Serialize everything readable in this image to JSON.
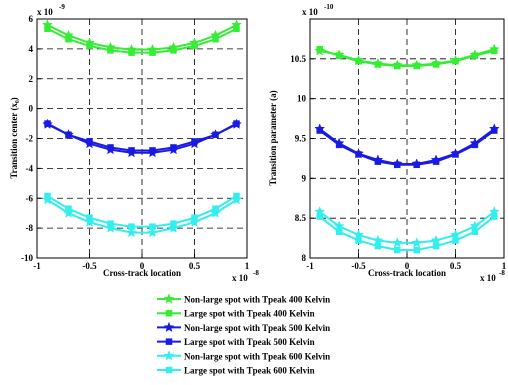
{
  "chart_data": [
    {
      "type": "line",
      "xlabel": "Cross-track location",
      "ylabel": "Transition center (x₀)",
      "x_exponent": "x 10",
      "x_exponent_power": "-8",
      "y_exponent": "x 10",
      "y_exponent_power": "-9",
      "xlim": [
        -1,
        1
      ],
      "ylim": [
        -10,
        6
      ],
      "xticks": [
        "-1",
        "-0.5",
        "0",
        "0.5",
        "1"
      ],
      "yticks": [
        "6",
        "4",
        "2",
        "0",
        "-2",
        "-4",
        "-6",
        "-8",
        "-10"
      ],
      "grid": true,
      "x": [
        -0.9,
        -0.7,
        -0.5,
        -0.3,
        -0.1,
        0.1,
        0.3,
        0.5,
        0.7,
        0.9
      ],
      "series": [
        {
          "name": "Non-large spot with Tpeak 400 Kelvin",
          "values": [
            5.6,
            4.9,
            4.4,
            4.1,
            3.95,
            3.95,
            4.1,
            4.4,
            4.9,
            5.6
          ]
        },
        {
          "name": "Large spot with Tpeak 400 Kelvin",
          "values": [
            5.35,
            4.65,
            4.2,
            3.9,
            3.75,
            3.75,
            3.9,
            4.2,
            4.65,
            5.35
          ]
        },
        {
          "name": "Non-large spot with Tpeak 500 Kelvin",
          "values": [
            -1.05,
            -1.75,
            -2.35,
            -2.75,
            -2.95,
            -2.95,
            -2.75,
            -2.35,
            -1.75,
            -1.05
          ]
        },
        {
          "name": "Large spot with Tpeak 500 Kelvin",
          "values": [
            -1.0,
            -1.75,
            -2.2,
            -2.6,
            -2.8,
            -2.8,
            -2.6,
            -2.2,
            -1.75,
            -1.0
          ]
        },
        {
          "name": "Non-large spot with Tpeak 600 Kelvin",
          "values": [
            -6.1,
            -7.0,
            -7.6,
            -8.0,
            -8.3,
            -8.3,
            -8.0,
            -7.6,
            -7.0,
            -6.1
          ]
        },
        {
          "name": "Large spot with Tpeak 600 Kelvin",
          "values": [
            -5.85,
            -6.7,
            -7.3,
            -7.7,
            -7.9,
            -7.9,
            -7.7,
            -7.3,
            -6.7,
            -5.85
          ]
        }
      ]
    },
    {
      "type": "line",
      "xlabel": "Cross-track location",
      "ylabel": "Transition parameter (a)",
      "x_exponent": "x 10",
      "x_exponent_power": "-8",
      "y_exponent": "x 10",
      "y_exponent_power": "-10",
      "xlim": [
        -1,
        1
      ],
      "ylim": [
        8,
        11
      ],
      "xticks": [
        "-1",
        "-0.5",
        "0",
        "0.5",
        "1"
      ],
      "yticks": [
        "10.5",
        "10",
        "9.5",
        "9",
        "8.5",
        "8"
      ],
      "grid": true,
      "x": [
        -0.9,
        -0.7,
        -0.5,
        -0.3,
        -0.1,
        0.1,
        0.3,
        0.5,
        0.7,
        0.9
      ],
      "series": [
        {
          "name": "Non-large spot with Tpeak 400 Kelvin",
          "values": [
            10.6,
            10.55,
            10.48,
            10.44,
            10.42,
            10.42,
            10.44,
            10.48,
            10.55,
            10.62
          ]
        },
        {
          "name": "Large spot with Tpeak 400 Kelvin",
          "values": [
            10.62,
            10.54,
            10.47,
            10.43,
            10.41,
            10.41,
            10.43,
            10.47,
            10.54,
            10.6
          ]
        },
        {
          "name": "Non-large spot with Tpeak 500 Kelvin",
          "values": [
            9.62,
            9.44,
            9.31,
            9.23,
            9.18,
            9.18,
            9.23,
            9.31,
            9.44,
            9.62
          ]
        },
        {
          "name": "Large spot with Tpeak 500 Kelvin",
          "values": [
            9.6,
            9.42,
            9.3,
            9.21,
            9.17,
            9.17,
            9.21,
            9.3,
            9.42,
            9.6
          ]
        },
        {
          "name": "Non-large spot with Tpeak 600 Kelvin",
          "values": [
            8.58,
            8.4,
            8.29,
            8.22,
            8.19,
            8.19,
            8.22,
            8.29,
            8.4,
            8.58
          ]
        },
        {
          "name": "Large spot with Tpeak 600 Kelvin",
          "values": [
            8.52,
            8.33,
            8.22,
            8.15,
            8.1,
            8.1,
            8.15,
            8.22,
            8.33,
            8.52
          ]
        }
      ]
    }
  ],
  "legend": {
    "position": "bottom-center",
    "entries": [
      {
        "label": "Non-large spot with Tpeak 400 Kelvin",
        "marker": "star"
      },
      {
        "label": "Large spot with Tpeak 400 Kelvin",
        "marker": "square"
      },
      {
        "label": "Non-large spot with Tpeak 500 Kelvin",
        "marker": "star"
      },
      {
        "label": "Large spot with Tpeak 500 Kelvin",
        "marker": "square"
      },
      {
        "label": "Non-large spot with Tpeak 600 Kelvin",
        "marker": "star"
      },
      {
        "label": "Large spot with Tpeak 600 Kelvin",
        "marker": "square"
      }
    ]
  },
  "colors": {
    "green": "#33ee33",
    "blue": "#1a1ae6",
    "cyan": "#33eeee",
    "grid": "#000000",
    "axis": "#000000"
  },
  "series_colors": [
    "green",
    "green",
    "blue",
    "blue",
    "cyan",
    "cyan"
  ],
  "series_markers": [
    "star",
    "square",
    "star",
    "square",
    "star",
    "square"
  ]
}
